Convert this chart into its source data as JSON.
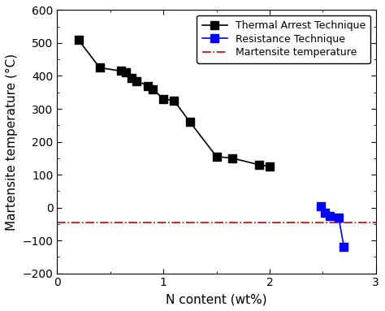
{
  "thermal_x": [
    0.2,
    0.4,
    0.6,
    0.65,
    0.7,
    0.75,
    0.85,
    0.9,
    1.0,
    1.1,
    1.25,
    1.5,
    1.65,
    1.9,
    2.0
  ],
  "thermal_y": [
    510,
    425,
    415,
    410,
    395,
    385,
    370,
    360,
    330,
    325,
    260,
    155,
    150,
    130,
    125
  ],
  "resistance_x": [
    2.48,
    2.52,
    2.57,
    2.65,
    2.7
  ],
  "resistance_y": [
    5,
    -15,
    -25,
    -30,
    -120
  ],
  "martensite_y": -45,
  "xlim": [
    0,
    3
  ],
  "ylim": [
    -200,
    600
  ],
  "xticks": [
    0,
    1,
    2,
    3
  ],
  "yticks": [
    -200,
    -100,
    0,
    100,
    200,
    300,
    400,
    500,
    600
  ],
  "xlabel": "N content (wt%)",
  "ylabel": "Martensite temperature (°C)",
  "legend_thermal": "Thermal Arrest Technique",
  "legend_resistance": "Resistance Technique",
  "legend_martensite": "Martensite temperature",
  "thermal_color": "#000000",
  "resistance_color": "#0000ff",
  "martensite_color": "#cc0000",
  "marker_size": 7,
  "linewidth": 1.2,
  "background_color": "#ffffff",
  "tick_fontsize": 10,
  "label_fontsize": 11,
  "legend_fontsize": 9
}
